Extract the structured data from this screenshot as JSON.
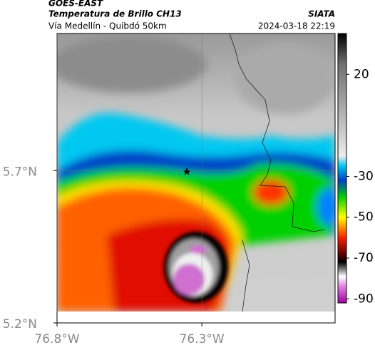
{
  "header": {
    "title": "GOES-EAST",
    "subtitle": "Temperatura de Brillo CH13",
    "location": "Vía Medellín - Quibdó 50km",
    "source": "SIATA",
    "datetime": "2024-03-18 22:19"
  },
  "map": {
    "xlim": [
      -76.8,
      -75.84
    ],
    "ylim": [
      5.2,
      6.15
    ],
    "xticks": [
      {
        "value": -76.8,
        "label": "76.8°W"
      },
      {
        "value": -76.3,
        "label": "76.3°W"
      }
    ],
    "yticks": [
      {
        "value": 5.7,
        "label": "5.7°N"
      },
      {
        "value": 5.2,
        "label": "5.2°N"
      }
    ],
    "grid": true
  },
  "colorbar": {
    "lim": [
      -92,
      40
    ],
    "ticks": [
      20,
      -30,
      -50,
      -70,
      -90
    ],
    "colormap": [
      {
        "value": 40,
        "color": "#000000"
      },
      {
        "value": 25,
        "color": "#707070"
      },
      {
        "value": 0,
        "color": "#b4b4b4"
      },
      {
        "value": -20,
        "color": "#ececec"
      },
      {
        "value": -25,
        "color": "#00c8f0"
      },
      {
        "value": -32,
        "color": "#0040c8"
      },
      {
        "value": -40,
        "color": "#00d000"
      },
      {
        "value": -50,
        "color": "#ffff00"
      },
      {
        "value": -60,
        "color": "#ff2000"
      },
      {
        "value": -68,
        "color": "#600000"
      },
      {
        "value": -72,
        "color": "#000000"
      },
      {
        "value": -76,
        "color": "#909090"
      },
      {
        "value": -79,
        "color": "#ffffff"
      },
      {
        "value": -84,
        "color": "#e080e0"
      },
      {
        "value": -92,
        "color": "#a000a0"
      }
    ]
  }
}
